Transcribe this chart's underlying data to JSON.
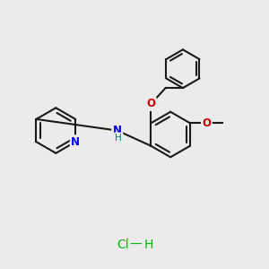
{
  "bg_color": "#ebebeb",
  "line_color": "#1a1a1a",
  "N_color": "#0000ee",
  "NH_color": "#008080",
  "O_color": "#cc0000",
  "HCl_color": "#00bb00",
  "line_width": 1.5,
  "fig_size": [
    3.0,
    3.0
  ],
  "dpi": 100,
  "xlim": [
    0,
    10
  ],
  "ylim": [
    0,
    10
  ]
}
